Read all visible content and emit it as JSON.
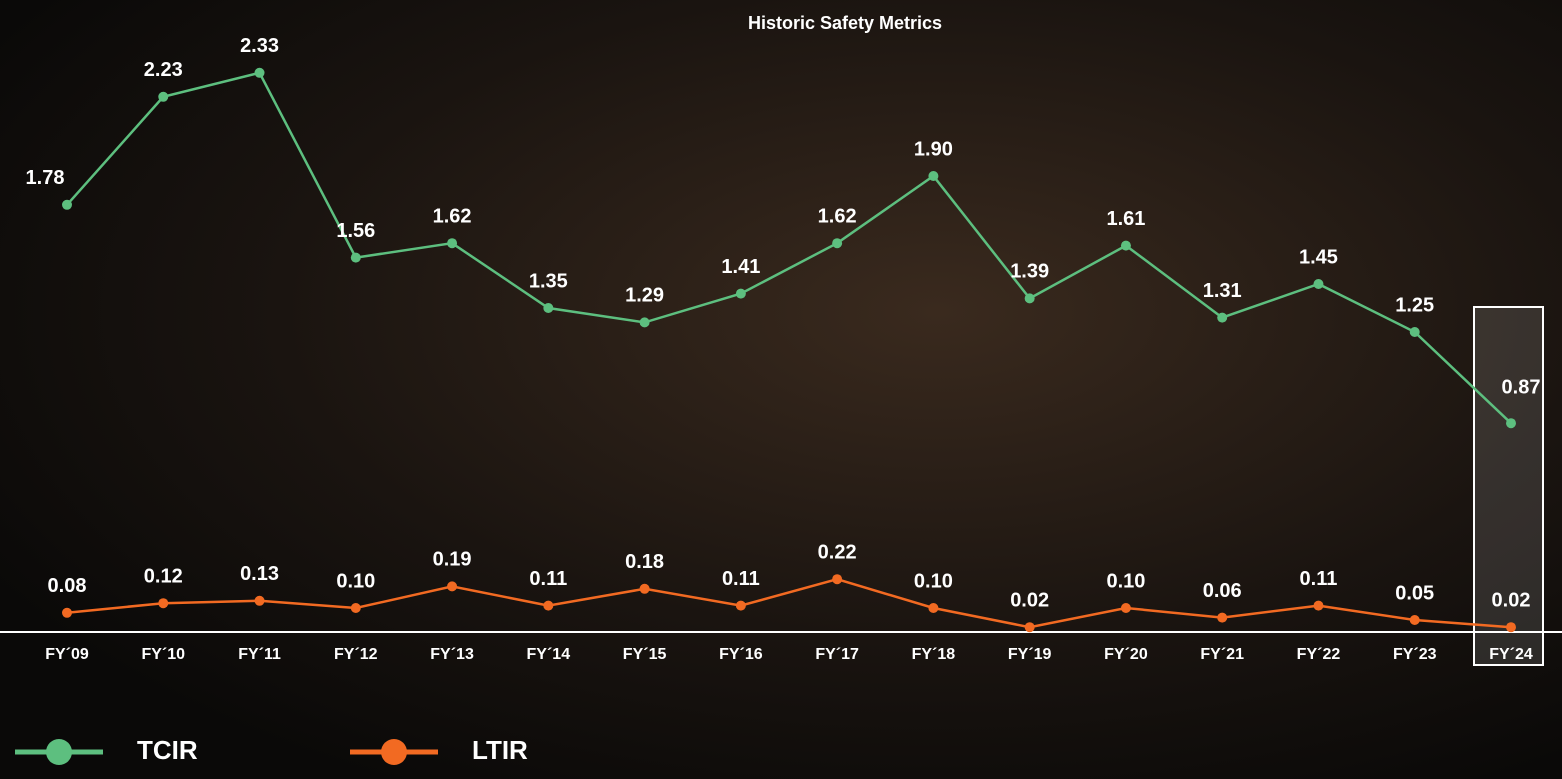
{
  "chart_data": {
    "type": "line",
    "title": "Historic Safety Metrics",
    "categories": [
      "FY´09",
      "FY´10",
      "FY´11",
      "FY´12",
      "FY´13",
      "FY´14",
      "FY´15",
      "FY´16",
      "FY´17",
      "FY´18",
      "FY´19",
      "FY´20",
      "FY´21",
      "FY´22",
      "FY´23",
      "FY´24"
    ],
    "series": [
      {
        "name": "TCIR",
        "color": "#5dbf7f",
        "values": [
          1.78,
          2.23,
          2.33,
          1.56,
          1.62,
          1.35,
          1.29,
          1.41,
          1.62,
          1.9,
          1.39,
          1.61,
          1.31,
          1.45,
          1.25,
          0.87
        ],
        "value_labels": [
          "1.78",
          "2.23",
          "2.33",
          "1.56",
          "1.62",
          "1.35",
          "1.29",
          "1.41",
          "1.62",
          "1.90",
          "1.39",
          "1.61",
          "1.31",
          "1.45",
          "1.25",
          "0.87"
        ]
      },
      {
        "name": "LTIR",
        "color": "#f26a22",
        "values": [
          0.08,
          0.12,
          0.13,
          0.1,
          0.19,
          0.11,
          0.18,
          0.11,
          0.22,
          0.1,
          0.02,
          0.1,
          0.06,
          0.11,
          0.05,
          0.02
        ],
        "value_labels": [
          "0.08",
          "0.12",
          "0.13",
          "0.10",
          "0.19",
          "0.11",
          "0.18",
          "0.11",
          "0.22",
          "0.10",
          "0.02",
          "0.10",
          "0.06",
          "0.11",
          "0.05",
          "0.02"
        ]
      }
    ],
    "ylim": [
      0,
      2.5
    ]
  }
}
